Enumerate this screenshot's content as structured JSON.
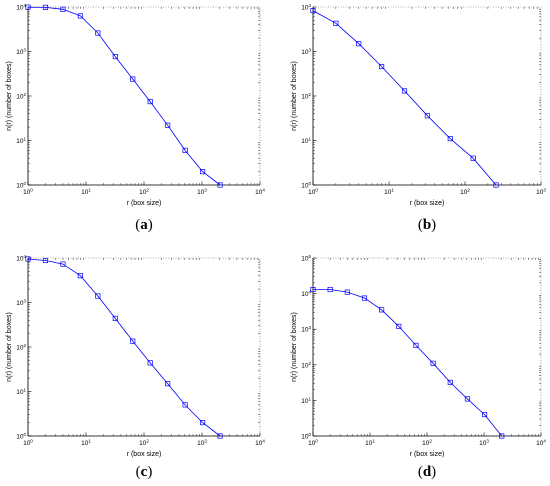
{
  "chart_data": [
    {
      "type": "line",
      "caption": "a",
      "xlabel": "r (box size)",
      "ylabel": "n(r) (number of boxes)",
      "xscale": "log",
      "yscale": "log",
      "xlim": [
        1,
        10000
      ],
      "ylim": [
        1,
        10000
      ],
      "xticks": [
        "10^0",
        "10^1",
        "10^2",
        "10^3",
        "10^4"
      ],
      "yticks": [
        "10^0",
        "10^1",
        "10^2",
        "10^3",
        "10^4"
      ],
      "marker": "square",
      "color": "#0000ff",
      "x": [
        1,
        2,
        4,
        8,
        16,
        32,
        64,
        128,
        256,
        512,
        1024,
        2048
      ],
      "y": [
        9900,
        9800,
        8900,
        6300,
        2600,
        770,
        240,
        75,
        22,
        6,
        2,
        1
      ]
    },
    {
      "type": "line",
      "caption": "b",
      "xlabel": "r (box size)",
      "ylabel": "n(r) (number of boxes)",
      "xscale": "log",
      "yscale": "log",
      "xlim": [
        1,
        1000
      ],
      "ylim": [
        1,
        10000
      ],
      "xticks": [
        "10^0",
        "10^1",
        "10^2",
        "10^3"
      ],
      "yticks": [
        "10^0",
        "10^1",
        "10^2",
        "10^3",
        "10^4"
      ],
      "marker": "square",
      "color": "#0000ff",
      "x": [
        1,
        2,
        4,
        8,
        16,
        32,
        64,
        128,
        256
      ],
      "y": [
        8300,
        4300,
        1500,
        460,
        130,
        36,
        11,
        4,
        1
      ]
    },
    {
      "type": "line",
      "caption": "c",
      "xlabel": "r (box size)",
      "ylabel": "n(r) (number of boxes)",
      "xscale": "log",
      "yscale": "log",
      "xlim": [
        1,
        10000
      ],
      "ylim": [
        1,
        10000
      ],
      "xticks": [
        "10^0",
        "10^1",
        "10^2",
        "10^3",
        "10^4"
      ],
      "yticks": [
        "10^0",
        "10^1",
        "10^2",
        "10^3",
        "10^4"
      ],
      "marker": "square",
      "color": "#0000ff",
      "x": [
        1,
        2,
        4,
        8,
        16,
        32,
        64,
        128,
        256,
        512,
        1024,
        2048
      ],
      "y": [
        9500,
        8800,
        7300,
        4000,
        1400,
        440,
        135,
        44,
        15,
        5,
        2,
        1
      ]
    },
    {
      "type": "line",
      "caption": "d",
      "xlabel": "r (box size)",
      "ylabel": "n(r) (number of boxes)",
      "xscale": "log",
      "yscale": "log",
      "xlim": [
        1,
        10000
      ],
      "ylim": [
        1,
        100000
      ],
      "xticks": [
        "10^0",
        "10^1",
        "10^2",
        "10^3",
        "10^4"
      ],
      "yticks": [
        "10^0",
        "10^1",
        "10^2",
        "10^3",
        "10^4",
        "10^5"
      ],
      "marker": "square",
      "color": "#0000ff",
      "x": [
        1,
        2,
        4,
        8,
        16,
        32,
        64,
        128,
        256,
        512,
        1024,
        2048
      ],
      "y": [
        13000,
        13000,
        11000,
        7500,
        3500,
        1200,
        350,
        110,
        32,
        11,
        4,
        1
      ]
    }
  ]
}
